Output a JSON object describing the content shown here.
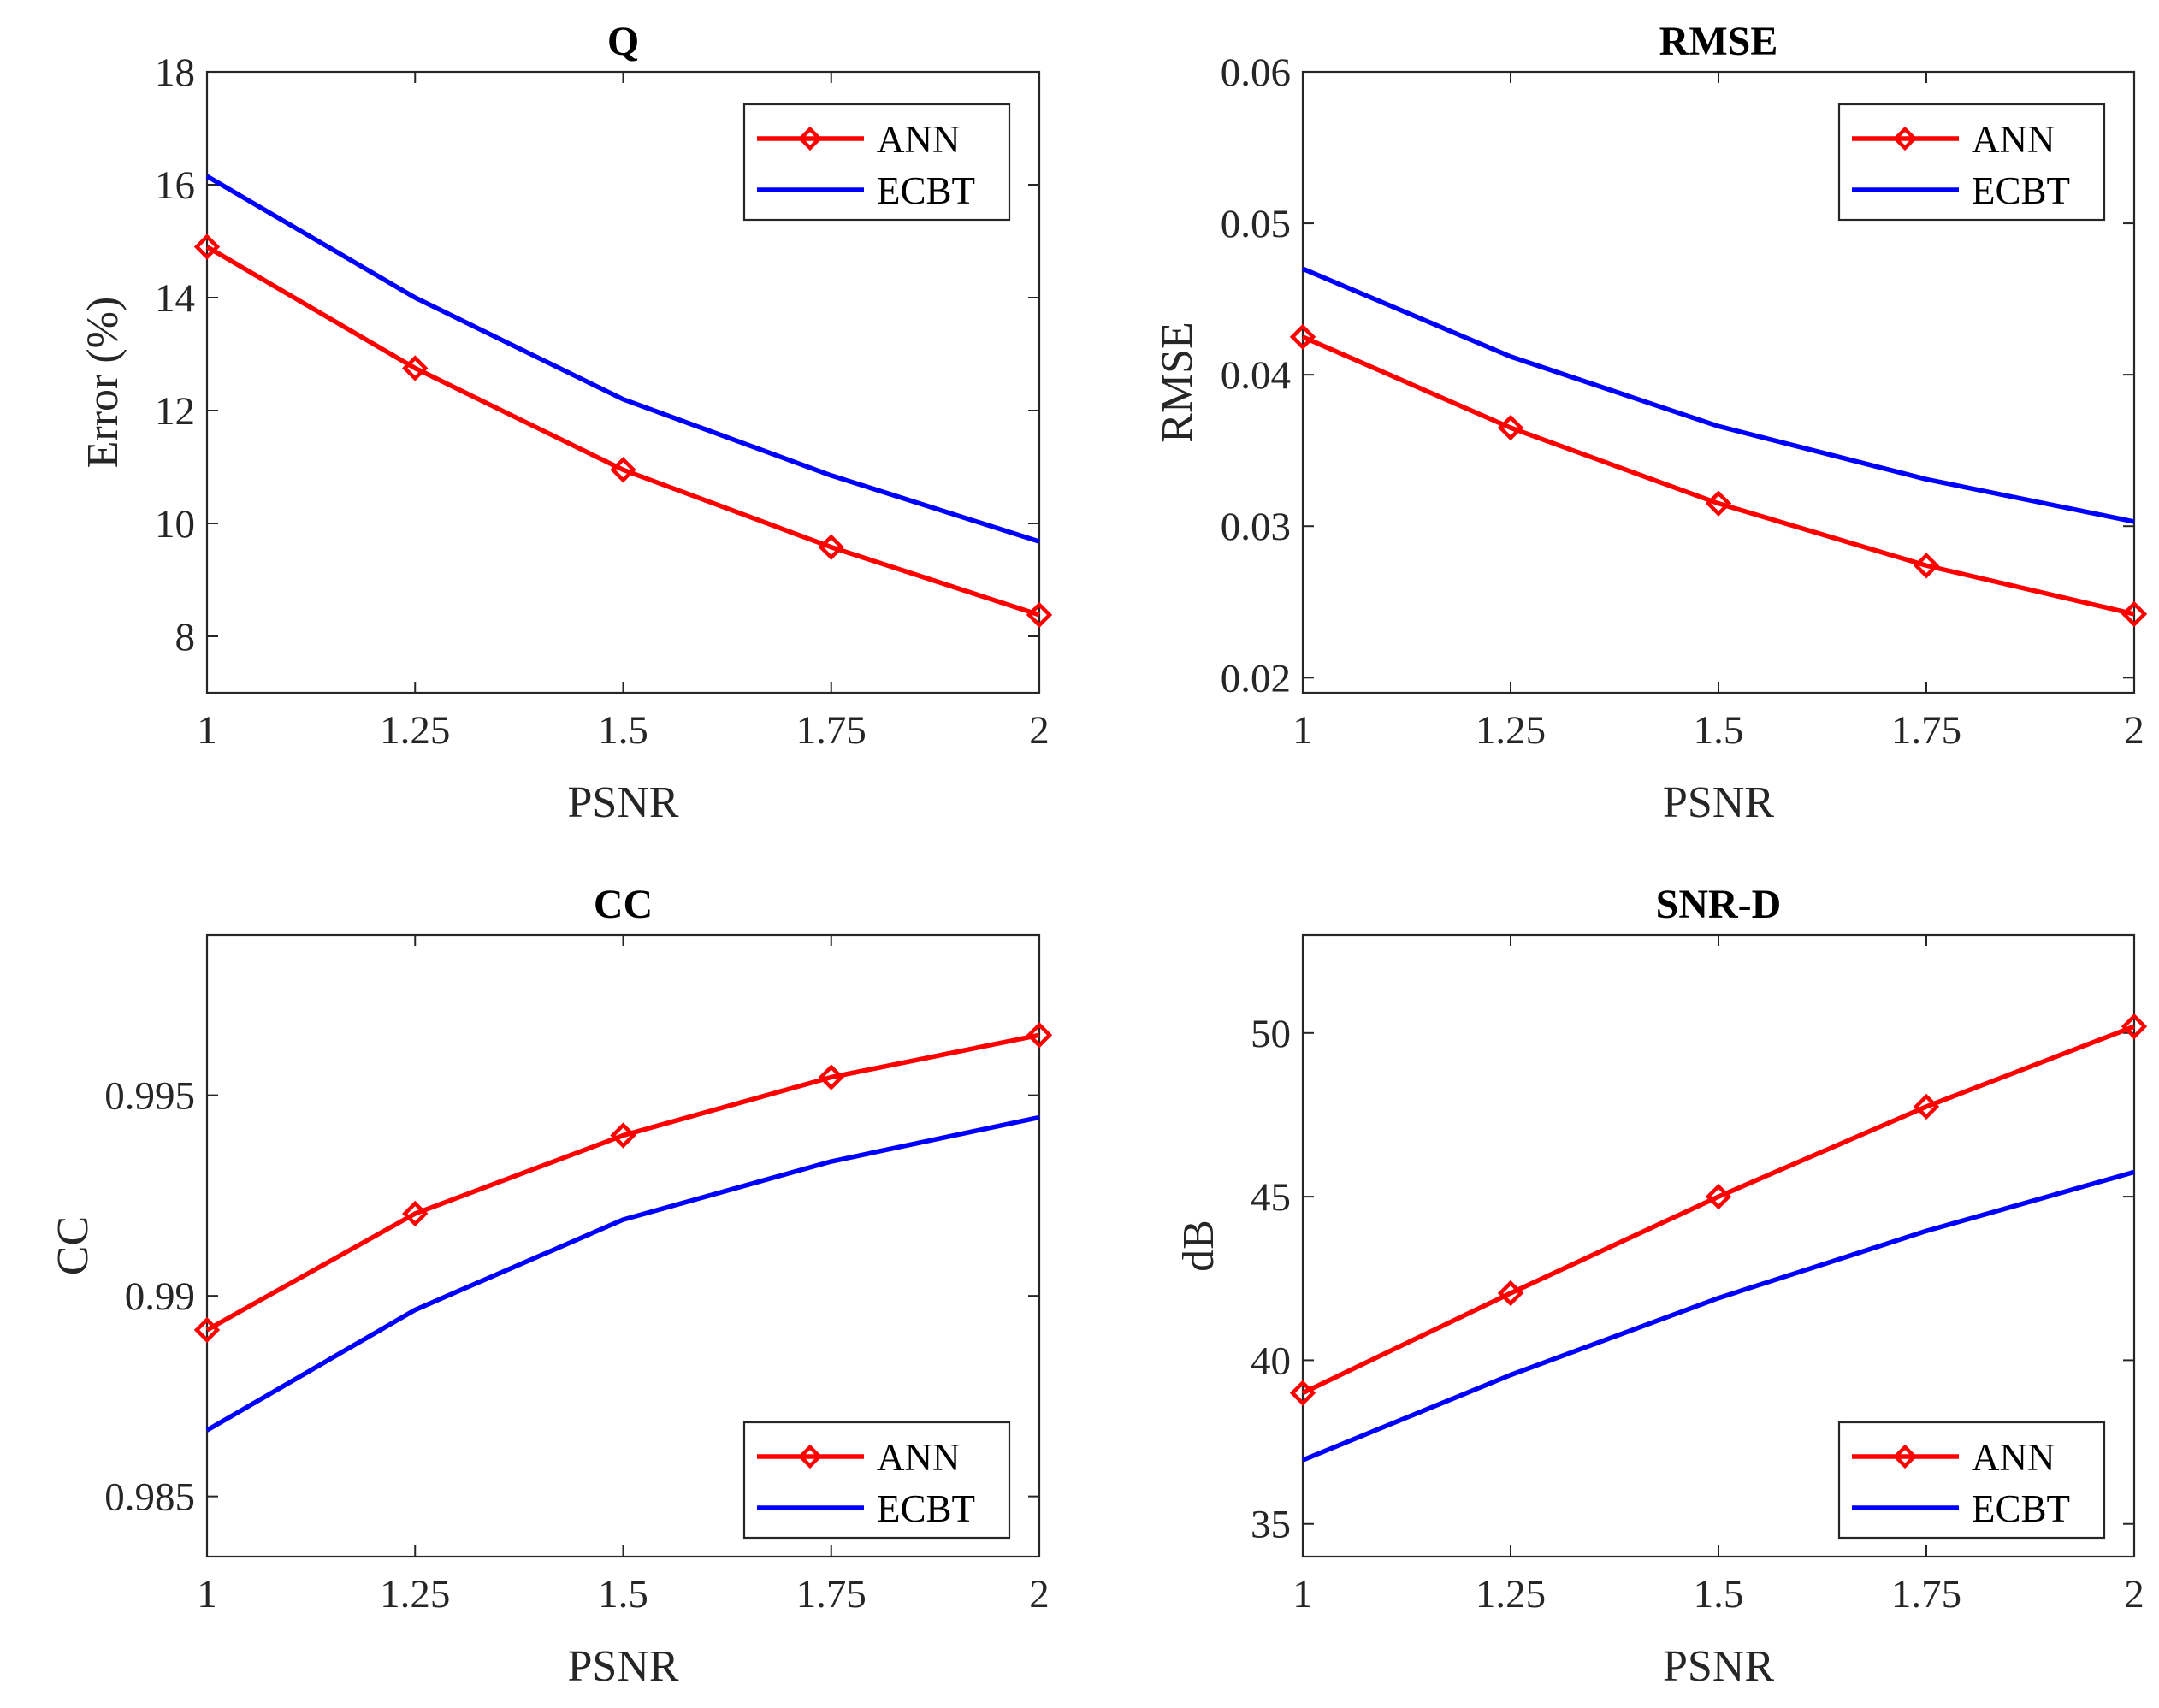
{
  "chart_data": [
    {
      "type": "line",
      "title": "Q",
      "xlabel": "PSNR",
      "ylabel": "Error (%)",
      "x": [
        1,
        1.25,
        1.5,
        1.75,
        2
      ],
      "x_tick_labels": [
        "1",
        "1.25",
        "1.5",
        "1.75",
        "2"
      ],
      "xlim": [
        1,
        2
      ],
      "ylim": [
        7,
        18
      ],
      "y_ticks": [
        8,
        10,
        12,
        14,
        16,
        18
      ],
      "y_tick_labels": [
        "8",
        "10",
        "12",
        "14",
        "16",
        "18"
      ],
      "legend_position": "top-right",
      "series": [
        {
          "name": "ANN",
          "color": "#ff0000",
          "marker": "diamond",
          "values": [
            14.9,
            12.75,
            10.95,
            9.58,
            8.38
          ]
        },
        {
          "name": "ECBT",
          "color": "#0000ff",
          "marker": "none",
          "values": [
            16.15,
            14.0,
            12.2,
            10.85,
            9.68
          ]
        }
      ]
    },
    {
      "type": "line",
      "title": "RMSE",
      "xlabel": "PSNR",
      "ylabel": "RMSE",
      "x": [
        1,
        1.25,
        1.5,
        1.75,
        2
      ],
      "x_tick_labels": [
        "1",
        "1.25",
        "1.5",
        "1.75",
        "2"
      ],
      "xlim": [
        1,
        2
      ],
      "ylim": [
        0.019,
        0.06
      ],
      "y_ticks": [
        0.02,
        0.03,
        0.04,
        0.05,
        0.06
      ],
      "y_tick_labels": [
        "0.02",
        "0.03",
        "0.04",
        "0.05",
        "0.06"
      ],
      "legend_position": "top-right",
      "series": [
        {
          "name": "ANN",
          "color": "#ff0000",
          "marker": "diamond",
          "values": [
            0.0425,
            0.0365,
            0.0315,
            0.0274,
            0.0242
          ]
        },
        {
          "name": "ECBT",
          "color": "#0000ff",
          "marker": "none",
          "values": [
            0.047,
            0.0412,
            0.0366,
            0.0331,
            0.0303
          ]
        }
      ]
    },
    {
      "type": "line",
      "title": "CC",
      "xlabel": "PSNR",
      "ylabel": "CC",
      "x": [
        1,
        1.25,
        1.5,
        1.75,
        2
      ],
      "x_tick_labels": [
        "1",
        "1.25",
        "1.5",
        "1.75",
        "2"
      ],
      "xlim": [
        1,
        2
      ],
      "ylim": [
        0.9835,
        0.999
      ],
      "y_ticks": [
        0.985,
        0.99,
        0.995
      ],
      "y_tick_labels": [
        "0.985",
        "0.99",
        "0.995"
      ],
      "legend_position": "bottom-right",
      "series": [
        {
          "name": "ANN",
          "color": "#ff0000",
          "marker": "diamond",
          "values": [
            0.98915,
            0.99205,
            0.994,
            0.99545,
            0.9965
          ]
        },
        {
          "name": "ECBT",
          "color": "#0000ff",
          "marker": "none",
          "values": [
            0.98665,
            0.98965,
            0.9919,
            0.99335,
            0.99445
          ]
        }
      ]
    },
    {
      "type": "line",
      "title": "SNR-D",
      "xlabel": "PSNR",
      "ylabel": "dB",
      "x": [
        1,
        1.25,
        1.5,
        1.75,
        2
      ],
      "x_tick_labels": [
        "1",
        "1.25",
        "1.5",
        "1.75",
        "2"
      ],
      "xlim": [
        1,
        2
      ],
      "ylim": [
        34,
        53
      ],
      "y_ticks": [
        35,
        40,
        45,
        50
      ],
      "y_tick_labels": [
        "35",
        "40",
        "45",
        "50"
      ],
      "legend_position": "bottom-right",
      "series": [
        {
          "name": "ANN",
          "color": "#ff0000",
          "marker": "diamond",
          "values": [
            39.0,
            42.05,
            45.0,
            47.75,
            50.2
          ]
        },
        {
          "name": "ECBT",
          "color": "#0000ff",
          "marker": "none",
          "values": [
            36.95,
            39.55,
            41.9,
            43.95,
            45.75
          ]
        }
      ]
    }
  ]
}
